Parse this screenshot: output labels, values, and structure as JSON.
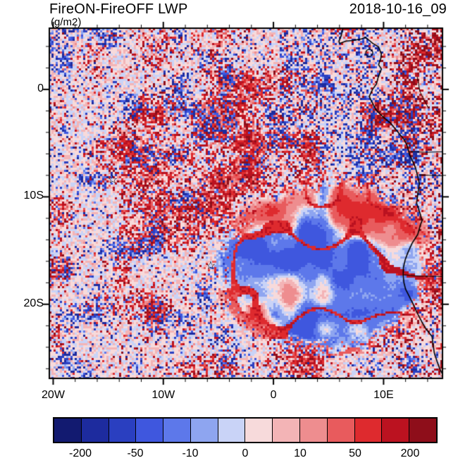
{
  "header": {
    "title": "FireON-FireOFF LWP",
    "units": "(g/m2)",
    "date": "2018-10-16_09"
  },
  "chart_data": {
    "type": "heatmap",
    "title": "FireON-FireOFF LWP",
    "units": "g/m2",
    "timestamp": "2018-10-16_09",
    "x_axis": {
      "range_lon": [
        -20.35,
        15.35
      ],
      "ticks": [
        {
          "label": "20W",
          "value": -20
        },
        {
          "label": "10W",
          "value": -10
        },
        {
          "label": "0",
          "value": 0
        },
        {
          "label": "10E",
          "value": 10
        }
      ],
      "minor_tick_step_deg": 2
    },
    "y_axis": {
      "range_lat": [
        5.7,
        -26.9
      ],
      "ticks": [
        {
          "label": "0",
          "value": 0
        },
        {
          "label": "10S",
          "value": -10
        },
        {
          "label": "20S",
          "value": -20
        }
      ],
      "minor_tick_step_deg": 2
    },
    "colorbar": {
      "levels": [
        -200,
        -100,
        -50,
        -20,
        -10,
        -5,
        0,
        5,
        10,
        20,
        50,
        100,
        200
      ],
      "labels": [
        {
          "text": "-200",
          "level_index": 1
        },
        {
          "text": "-50",
          "level_index": 3
        },
        {
          "text": "-10",
          "level_index": 5
        },
        {
          "text": "0",
          "level_index": 7
        },
        {
          "text": "10",
          "level_index": 9
        },
        {
          "text": "50",
          "level_index": 11
        },
        {
          "text": "200",
          "level_index": 13
        }
      ],
      "colors": [
        "#121a70",
        "#1d2b9e",
        "#2a3fc0",
        "#3f57de",
        "#5d78ea",
        "#8ea5f0",
        "#c9d3f7",
        "#f7dadb",
        "#f3b4b6",
        "#ee8d8f",
        "#e85b5d",
        "#de2a2e",
        "#bb1220",
        "#8e0e1a"
      ]
    },
    "markers": [
      {
        "symbol": "star",
        "lon": -14.6,
        "lat": -8.5
      },
      {
        "symbol": "star",
        "lon": -5.7,
        "lat": -16.5
      }
    ],
    "islands": [
      {
        "lon": 8.7,
        "lat": 3.4,
        "radius_px": 5
      }
    ],
    "coastline_lonlat": [
      [
        6.3,
        5.7
      ],
      [
        6.15,
        5.0
      ],
      [
        5.95,
        4.5
      ],
      [
        6.0,
        4.27
      ],
      [
        6.6,
        4.5
      ],
      [
        7.2,
        4.55
      ],
      [
        8.0,
        4.7
      ],
      [
        8.35,
        4.85
      ],
      [
        8.6,
        4.65
      ],
      [
        9.0,
        4.3
      ],
      [
        9.55,
        3.95
      ],
      [
        9.8,
        3.3
      ],
      [
        9.75,
        2.9
      ],
      [
        9.55,
        2.3
      ],
      [
        9.8,
        1.9
      ],
      [
        9.5,
        1.1
      ],
      [
        9.35,
        0.5
      ],
      [
        9.0,
        0.0
      ],
      [
        8.7,
        -0.65
      ],
      [
        9.0,
        -1.3
      ],
      [
        9.35,
        -1.95
      ],
      [
        10.0,
        -2.6
      ],
      [
        10.65,
        -3.15
      ],
      [
        11.2,
        -3.85
      ],
      [
        11.85,
        -4.65
      ],
      [
        12.15,
        -5.25
      ],
      [
        12.35,
        -6.05
      ],
      [
        12.6,
        -6.6
      ],
      [
        12.9,
        -7.3
      ],
      [
        13.1,
        -8.1
      ],
      [
        13.25,
        -8.8
      ],
      [
        13.1,
        -9.8
      ],
      [
        13.0,
        -10.6
      ],
      [
        13.3,
        -11.5
      ],
      [
        13.5,
        -12.2
      ],
      [
        13.35,
        -12.6
      ],
      [
        13.1,
        -13.5
      ],
      [
        12.6,
        -14.3
      ],
      [
        12.2,
        -15.2
      ],
      [
        11.95,
        -15.9
      ],
      [
        11.8,
        -16.6
      ],
      [
        11.78,
        -17.3
      ],
      [
        11.85,
        -18.0
      ],
      [
        12.0,
        -18.6
      ],
      [
        12.3,
        -19.2
      ],
      [
        12.7,
        -20.0
      ],
      [
        13.05,
        -20.8
      ],
      [
        13.45,
        -21.6
      ],
      [
        13.85,
        -22.3
      ],
      [
        14.4,
        -23.0
      ],
      [
        14.5,
        -23.8
      ],
      [
        14.6,
        -24.5
      ],
      [
        14.85,
        -25.3
      ],
      [
        15.1,
        -26.0
      ],
      [
        15.45,
        -26.7
      ]
    ],
    "borders_lonlat": [
      [
        [
          13.05,
          1.2
        ],
        [
          13.3,
          -0.2
        ],
        [
          14.05,
          -1.7
        ]
      ],
      [
        [
          12.45,
          -5.8
        ],
        [
          13.9,
          -5.85
        ],
        [
          15.45,
          -5.8
        ]
      ],
      [
        [
          13.15,
          -7.95
        ],
        [
          15.45,
          -8.05
        ]
      ],
      [
        [
          11.8,
          -17.25
        ],
        [
          13.2,
          -17.38
        ],
        [
          15.45,
          -17.42
        ]
      ]
    ]
  }
}
